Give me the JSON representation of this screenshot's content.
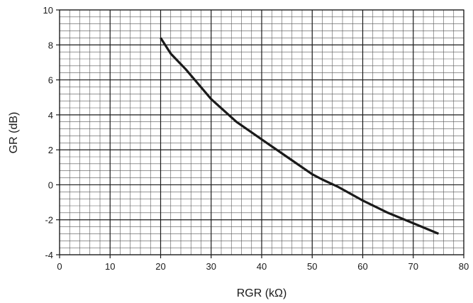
{
  "chart_data": {
    "type": "line",
    "xlabel": "RGR (kΩ)",
    "ylabel": "GR (dB)",
    "xlim": [
      0,
      80
    ],
    "ylim": [
      -4,
      10
    ],
    "xticks": [
      0,
      10,
      20,
      30,
      40,
      50,
      60,
      70,
      80
    ],
    "yticks": [
      -4,
      -2,
      0,
      2,
      4,
      6,
      8,
      10
    ],
    "grid": true,
    "grid_minor_x_step": 2,
    "grid_minor_y_step": 0.4,
    "legend": false,
    "series": [
      {
        "color": "#1a1a1a",
        "x": [
          20,
          22,
          25,
          30,
          35,
          40,
          45,
          50,
          52,
          55,
          60,
          65,
          70,
          75
        ],
        "y": [
          8.4,
          7.5,
          6.6,
          4.9,
          3.6,
          2.6,
          1.6,
          0.6,
          0.3,
          -0.1,
          -0.9,
          -1.6,
          -2.2,
          -2.8
        ]
      }
    ]
  }
}
